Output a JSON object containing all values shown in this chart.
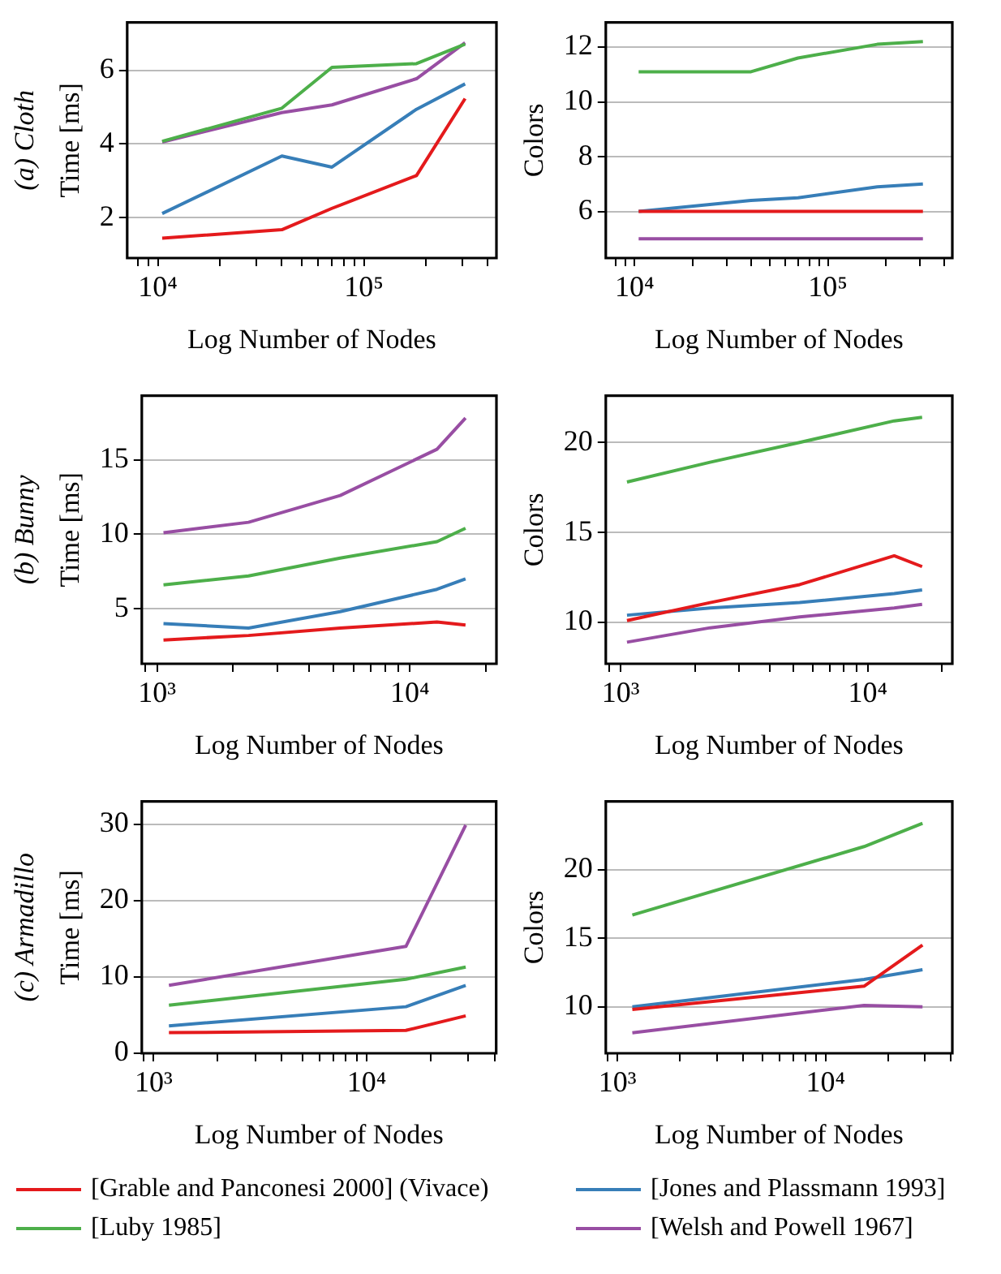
{
  "chart_data": [
    {
      "type": "line",
      "title": "(a) Cloth",
      "xlabel": "Log Number of Nodes",
      "ylabel": "Time [ms]",
      "log": "x",
      "grid": "y",
      "legend": false,
      "x": [
        10500,
        40000,
        70000,
        180000,
        310000
      ],
      "xlim": [
        7100,
        440000
      ],
      "xticks": [
        {
          "value": 8000,
          "label": null
        },
        {
          "value": 9000,
          "label": null
        },
        {
          "value": 10000,
          "label": "10⁴"
        },
        {
          "value": 20000,
          "label": null
        },
        {
          "value": 30000,
          "label": null
        },
        {
          "value": 40000,
          "label": null
        },
        {
          "value": 50000,
          "label": null
        },
        {
          "value": 60000,
          "label": null
        },
        {
          "value": 70000,
          "label": null
        },
        {
          "value": 80000,
          "label": null
        },
        {
          "value": 90000,
          "label": null
        },
        {
          "value": 100000,
          "label": "10⁵"
        },
        {
          "value": 200000,
          "label": null
        },
        {
          "value": 300000,
          "label": null
        },
        {
          "value": 400000,
          "label": null
        }
      ],
      "ylim": [
        0.9,
        7.3
      ],
      "yticks": [
        2,
        4,
        6
      ],
      "series": [
        {
          "color": "#e41a1c",
          "values": [
            1.44,
            1.67,
            2.25,
            3.14,
            5.23
          ]
        },
        {
          "color": "#377eb8",
          "values": [
            2.11,
            3.67,
            3.37,
            4.94,
            5.63
          ]
        },
        {
          "color": "#4daf4a",
          "values": [
            4.07,
            4.97,
            6.08,
            6.18,
            6.71
          ]
        },
        {
          "color": "#984ea3",
          "values": [
            4.05,
            4.85,
            5.06,
            5.77,
            6.75
          ]
        }
      ]
    },
    {
      "type": "line",
      "xlabel": "Log Number of Nodes",
      "ylabel": "Colors",
      "log": "x",
      "grid": "y",
      "legend": false,
      "x": [
        10500,
        40000,
        70000,
        180000,
        310000
      ],
      "xlim": [
        7100,
        440000
      ],
      "xticks": [
        {
          "value": 8000,
          "label": null
        },
        {
          "value": 9000,
          "label": null
        },
        {
          "value": 10000,
          "label": "10⁴"
        },
        {
          "value": 20000,
          "label": null
        },
        {
          "value": 30000,
          "label": null
        },
        {
          "value": 40000,
          "label": null
        },
        {
          "value": 50000,
          "label": null
        },
        {
          "value": 60000,
          "label": null
        },
        {
          "value": 70000,
          "label": null
        },
        {
          "value": 80000,
          "label": null
        },
        {
          "value": 90000,
          "label": null
        },
        {
          "value": 100000,
          "label": "10⁵"
        },
        {
          "value": 200000,
          "label": null
        },
        {
          "value": 300000,
          "label": null
        },
        {
          "value": 400000,
          "label": null
        }
      ],
      "ylim": [
        4.3,
        12.9
      ],
      "yticks": [
        6,
        8,
        10,
        12
      ],
      "series": [
        {
          "color": "#e41a1c",
          "values": [
            6,
            6,
            6,
            6,
            6
          ]
        },
        {
          "color": "#377eb8",
          "values": [
            6.0,
            6.4,
            6.5,
            6.9,
            7.0
          ]
        },
        {
          "color": "#4daf4a",
          "values": [
            11.1,
            11.1,
            11.6,
            12.1,
            12.2
          ]
        },
        {
          "color": "#984ea3",
          "values": [
            5,
            5,
            5,
            5,
            5
          ]
        }
      ]
    },
    {
      "type": "line",
      "title": "(b) Bunny",
      "xlabel": "Log Number of Nodes",
      "ylabel": "Time [ms]",
      "log": "x",
      "grid": "y",
      "legend": false,
      "x": [
        1060,
        2300,
        5300,
        12800,
        16600
      ],
      "xlim": [
        870,
        22000
      ],
      "xticks": [
        {
          "value": 900,
          "label": null
        },
        {
          "value": 1000,
          "label": "10³"
        },
        {
          "value": 2000,
          "label": null
        },
        {
          "value": 3000,
          "label": null
        },
        {
          "value": 4000,
          "label": null
        },
        {
          "value": 5000,
          "label": null
        },
        {
          "value": 6000,
          "label": null
        },
        {
          "value": 7000,
          "label": null
        },
        {
          "value": 8000,
          "label": null
        },
        {
          "value": 9000,
          "label": null
        },
        {
          "value": 10000,
          "label": "10⁴"
        },
        {
          "value": 20000,
          "label": null
        }
      ],
      "ylim": [
        1.3,
        19.3
      ],
      "yticks": [
        5,
        10,
        15
      ],
      "series": [
        {
          "color": "#e41a1c",
          "values": [
            2.9,
            3.2,
            3.7,
            4.1,
            3.9
          ]
        },
        {
          "color": "#377eb8",
          "values": [
            4.0,
            3.7,
            4.8,
            6.3,
            7.0
          ]
        },
        {
          "color": "#4daf4a",
          "values": [
            6.6,
            7.2,
            8.4,
            9.5,
            10.4
          ]
        },
        {
          "color": "#984ea3",
          "values": [
            10.1,
            10.8,
            12.6,
            15.7,
            17.8
          ]
        }
      ]
    },
    {
      "type": "line",
      "xlabel": "Log Number of Nodes",
      "ylabel": "Colors",
      "log": "x",
      "grid": "y",
      "legend": false,
      "x": [
        1060,
        2300,
        5300,
        12800,
        16600
      ],
      "xlim": [
        870,
        22000
      ],
      "xticks": [
        {
          "value": 900,
          "label": null
        },
        {
          "value": 1000,
          "label": "10³"
        },
        {
          "value": 2000,
          "label": null
        },
        {
          "value": 3000,
          "label": null
        },
        {
          "value": 4000,
          "label": null
        },
        {
          "value": 5000,
          "label": null
        },
        {
          "value": 6000,
          "label": null
        },
        {
          "value": 7000,
          "label": null
        },
        {
          "value": 8000,
          "label": null
        },
        {
          "value": 9000,
          "label": null
        },
        {
          "value": 10000,
          "label": "10⁴"
        },
        {
          "value": 20000,
          "label": null
        }
      ],
      "ylim": [
        7.7,
        22.6
      ],
      "yticks": [
        10,
        15,
        20
      ],
      "series": [
        {
          "color": "#e41a1c",
          "values": [
            10.1,
            11.1,
            12.1,
            13.7,
            13.1
          ]
        },
        {
          "color": "#377eb8",
          "values": [
            10.4,
            10.8,
            11.1,
            11.6,
            11.8
          ]
        },
        {
          "color": "#4daf4a",
          "values": [
            17.8,
            18.9,
            20.0,
            21.2,
            21.4
          ]
        },
        {
          "color": "#984ea3",
          "values": [
            8.9,
            9.7,
            10.3,
            10.8,
            11.0
          ]
        }
      ]
    },
    {
      "type": "line",
      "title": "(c) Armadillo",
      "xlabel": "Log Number of Nodes",
      "ylabel": "Time [ms]",
      "log": "x",
      "grid": "y",
      "legend": false,
      "x": [
        1180,
        15300,
        29200
      ],
      "xlim": [
        880,
        40600
      ],
      "xticks": [
        {
          "value": 900,
          "label": null
        },
        {
          "value": 1000,
          "label": "10³"
        },
        {
          "value": 2000,
          "label": null
        },
        {
          "value": 3000,
          "label": null
        },
        {
          "value": 4000,
          "label": null
        },
        {
          "value": 5000,
          "label": null
        },
        {
          "value": 6000,
          "label": null
        },
        {
          "value": 7000,
          "label": null
        },
        {
          "value": 8000,
          "label": null
        },
        {
          "value": 9000,
          "label": null
        },
        {
          "value": 10000,
          "label": "10⁴"
        },
        {
          "value": 20000,
          "label": null
        },
        {
          "value": 30000,
          "label": null
        },
        {
          "value": 40000,
          "label": null
        }
      ],
      "ylim": [
        0,
        33
      ],
      "yticks": [
        0,
        10,
        20,
        30
      ],
      "series": [
        {
          "color": "#e41a1c",
          "values": [
            2.7,
            3.0,
            4.9
          ]
        },
        {
          "color": "#377eb8",
          "values": [
            3.6,
            6.1,
            8.9
          ]
        },
        {
          "color": "#4daf4a",
          "values": [
            6.3,
            9.7,
            11.3
          ]
        },
        {
          "color": "#984ea3",
          "values": [
            8.9,
            14.0,
            29.9
          ]
        }
      ]
    },
    {
      "type": "line",
      "xlabel": "Log Number of Nodes",
      "ylabel": "Colors",
      "log": "x",
      "grid": "y",
      "legend": "bottom",
      "x": [
        1180,
        15300,
        29200
      ],
      "xlim": [
        880,
        40600
      ],
      "xticks": [
        {
          "value": 900,
          "label": null
        },
        {
          "value": 1000,
          "label": "10³"
        },
        {
          "value": 2000,
          "label": null
        },
        {
          "value": 3000,
          "label": null
        },
        {
          "value": 4000,
          "label": null
        },
        {
          "value": 5000,
          "label": null
        },
        {
          "value": 6000,
          "label": null
        },
        {
          "value": 7000,
          "label": null
        },
        {
          "value": 8000,
          "label": null
        },
        {
          "value": 9000,
          "label": null
        },
        {
          "value": 10000,
          "label": "10⁴"
        },
        {
          "value": 20000,
          "label": null
        },
        {
          "value": 30000,
          "label": null
        },
        {
          "value": 40000,
          "label": null
        }
      ],
      "ylim": [
        6.6,
        25
      ],
      "yticks": [
        10,
        15,
        20
      ],
      "series": [
        {
          "name": "[Grable and Panconesi 2000] (Vivace)",
          "color": "#e41a1c",
          "values": [
            9.8,
            11.5,
            14.5
          ]
        },
        {
          "name": "[Jones and Plassmann 1993]",
          "color": "#377eb8",
          "values": [
            10.0,
            12.0,
            12.7
          ]
        },
        {
          "name": "[Luby 1985]",
          "color": "#4daf4a",
          "values": [
            16.7,
            21.7,
            23.4
          ]
        },
        {
          "name": "[Welsh and Powell 1967]",
          "color": "#984ea3",
          "values": [
            8.1,
            10.1,
            10.0
          ]
        }
      ]
    }
  ]
}
